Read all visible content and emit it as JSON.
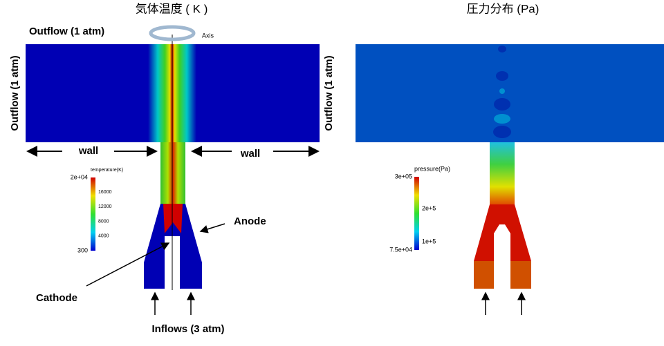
{
  "left_panel": {
    "title": "気体温度 ( K )",
    "outflow_top": "Outflow (1 atm)",
    "outflow_left": "Outflow (1 atm)",
    "outflow_right": "Outflow (1 atm)",
    "axis": "Axis",
    "wall_left": "wall",
    "wall_right": "wall",
    "anode": "Anode",
    "cathode": "Cathode",
    "inflows": "Inflows (3 atm)",
    "colorbar": {
      "title": "temperature(K)",
      "ticks": [
        "2e+04",
        "16000",
        "12000",
        "8000",
        "4000",
        "300"
      ]
    }
  },
  "right_panel": {
    "title": "圧力分布 (Pa)",
    "colorbar": {
      "title": "pressure(Pa)",
      "ticks": [
        "3e+05",
        "2e+5",
        "1e+5",
        "7.5e+04"
      ]
    }
  }
}
